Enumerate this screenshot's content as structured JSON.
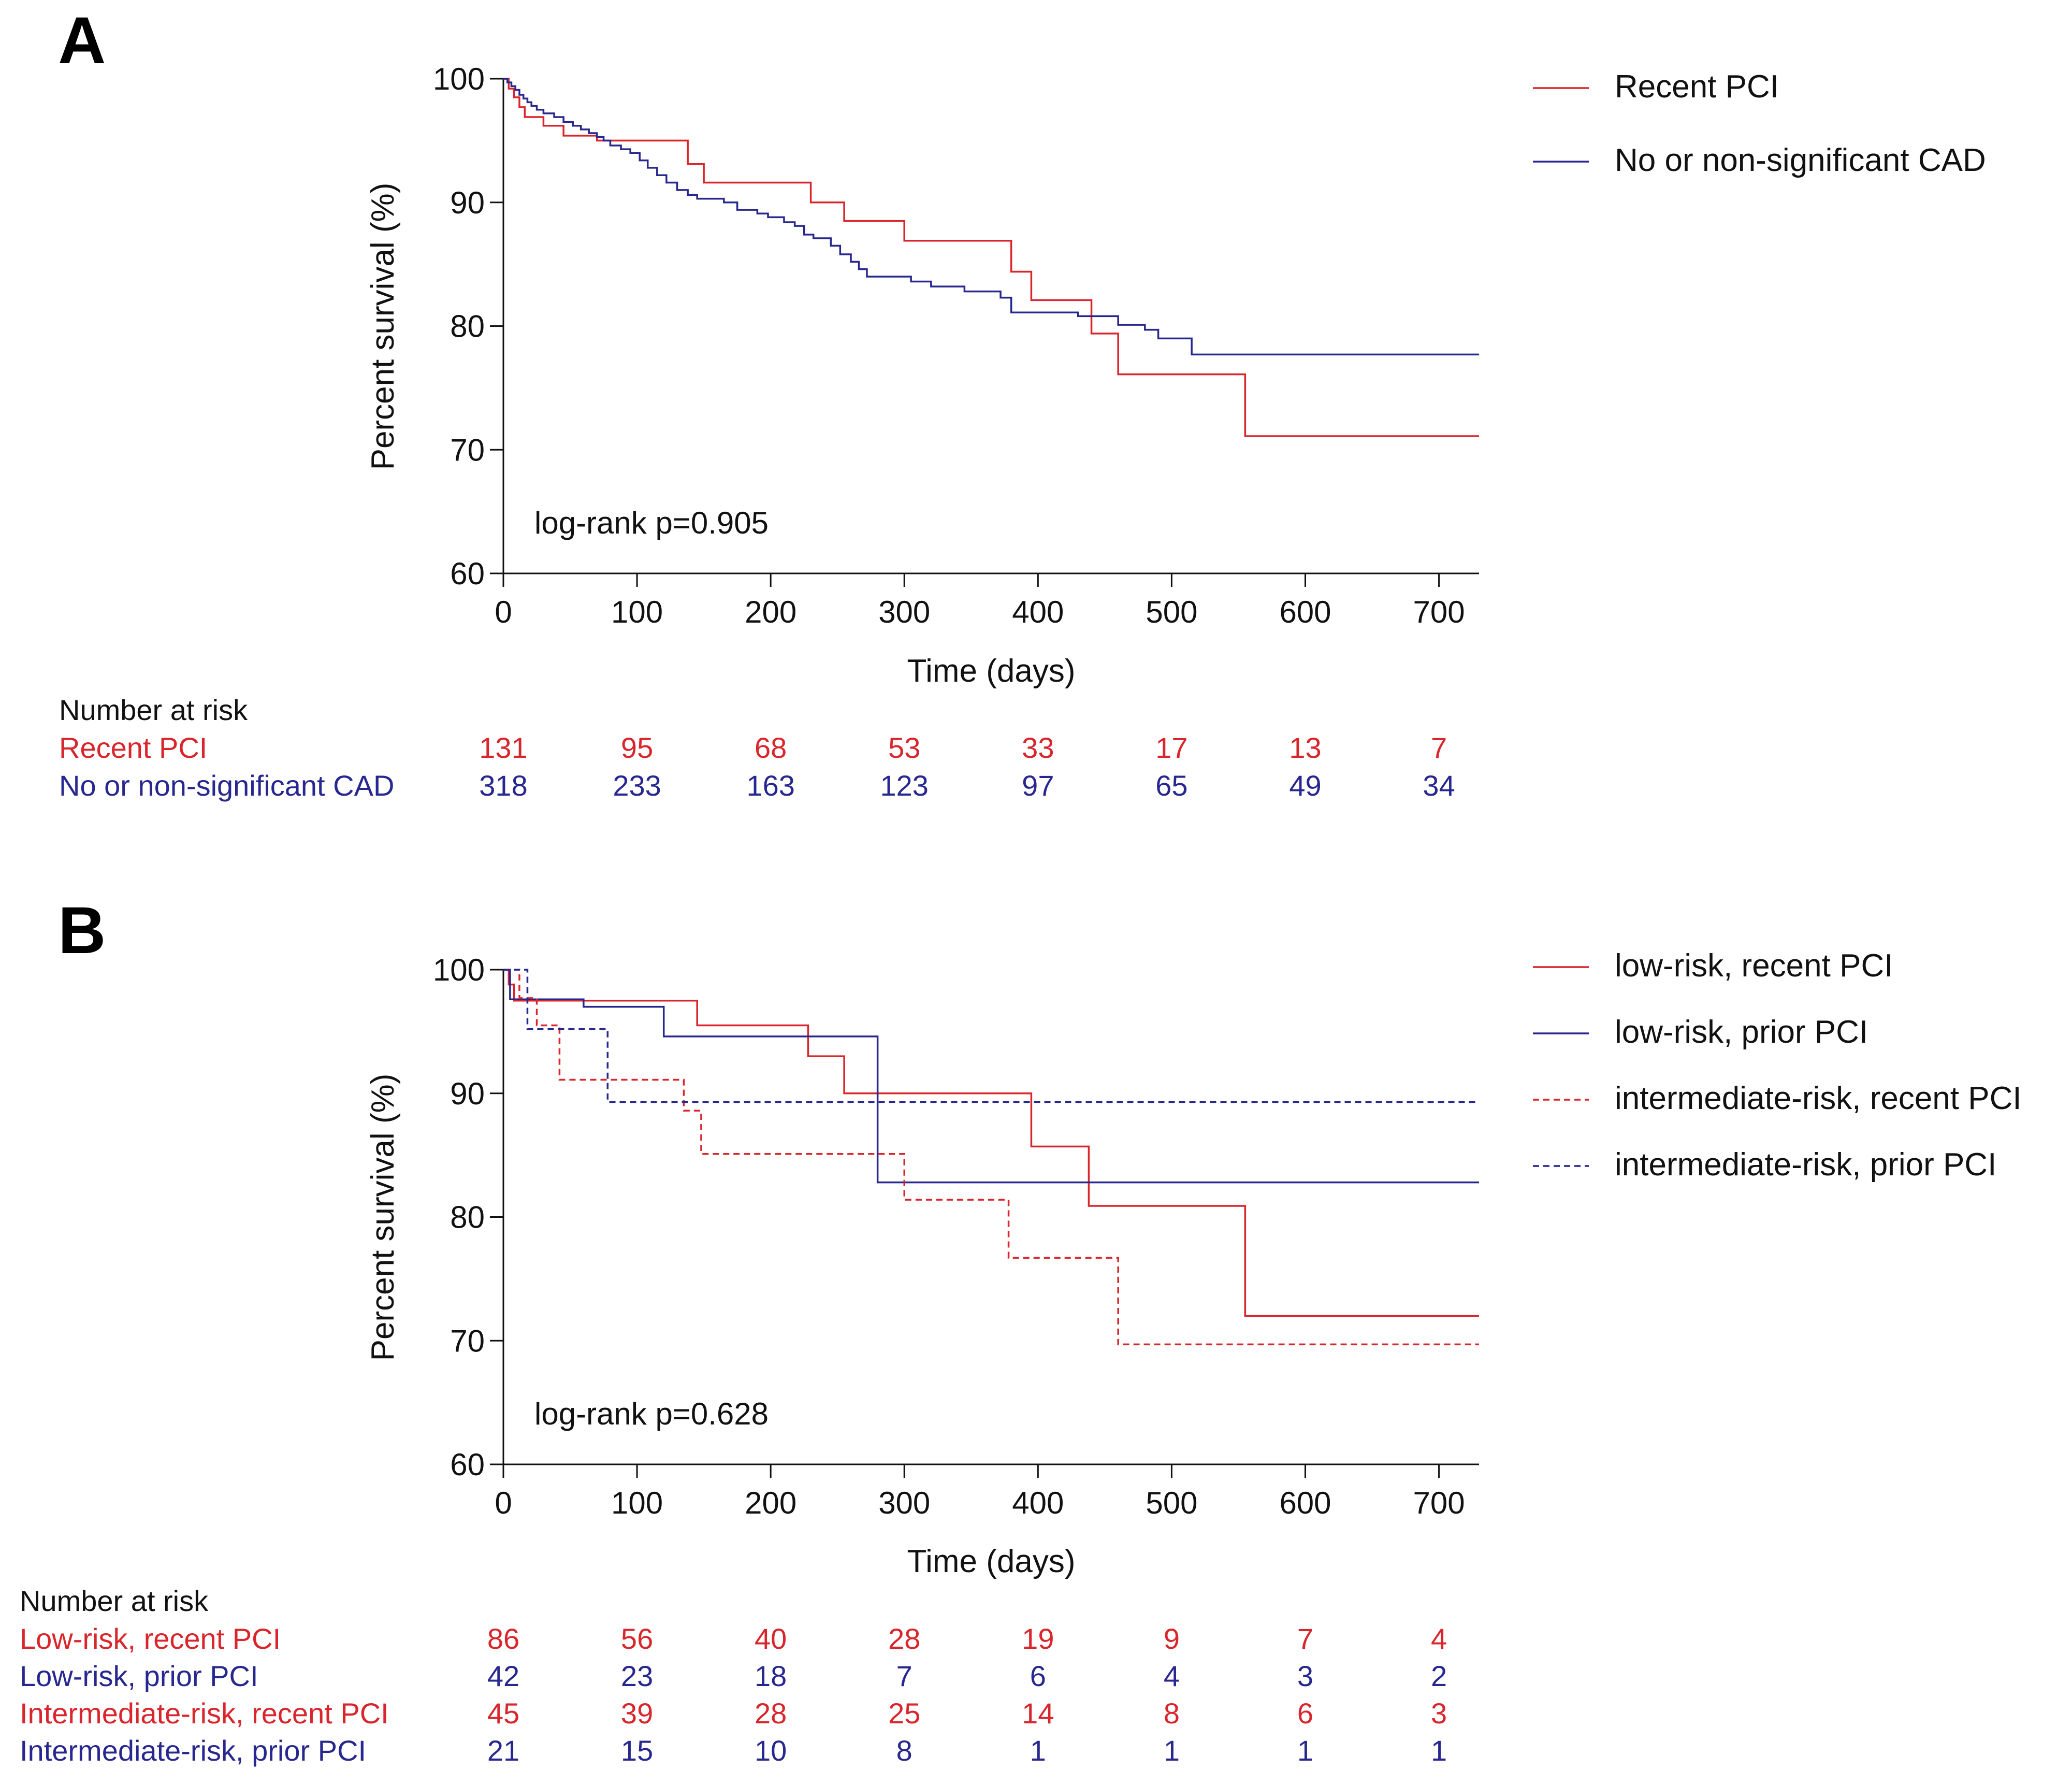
{
  "colors": {
    "red": "#d9262c",
    "blue": "#27278f",
    "black": "#111111"
  },
  "chart_data": [
    {
      "type": "line",
      "panel_label": "A",
      "title": "",
      "xlabel": "Time (days)",
      "ylabel": "Percent survival (%)",
      "xlim": [
        0,
        730
      ],
      "ylim": [
        60,
        100
      ],
      "xticks": [
        0,
        100,
        200,
        300,
        400,
        500,
        600,
        700
      ],
      "yticks": [
        60,
        70,
        80,
        90,
        100
      ],
      "xtick_labels": [
        "0",
        "100",
        "200",
        "300",
        "400",
        "500",
        "600",
        "700"
      ],
      "ytick_labels": [
        "60",
        "70",
        "80",
        "90",
        "100"
      ],
      "grid": false,
      "legend_position": "right",
      "annotation": "log-rank p=0.905",
      "series": [
        {
          "name": "Recent PCI",
          "color": "#d9262c",
          "dash": false,
          "steps": [
            [
              0,
              100
            ],
            [
              4,
              99.2
            ],
            [
              8,
              98.5
            ],
            [
              12,
              97.7
            ],
            [
              16,
              96.9
            ],
            [
              30,
              96.2
            ],
            [
              45,
              95.4
            ],
            [
              70,
              95.0
            ],
            [
              138,
              93.1
            ],
            [
              150,
              91.6
            ],
            [
              230,
              90.0
            ],
            [
              255,
              88.5
            ],
            [
              300,
              86.9
            ],
            [
              380,
              84.4
            ],
            [
              395,
              82.1
            ],
            [
              440,
              79.4
            ],
            [
              460,
              76.1
            ],
            [
              555,
              71.1
            ],
            [
              730,
              71.1
            ]
          ]
        },
        {
          "name": "No or non-significant CAD",
          "color": "#27278f",
          "dash": false,
          "steps": [
            [
              0,
              100
            ],
            [
              3,
              99.7
            ],
            [
              6,
              99.4
            ],
            [
              9,
              99.1
            ],
            [
              12,
              98.7
            ],
            [
              15,
              98.4
            ],
            [
              18,
              98.1
            ],
            [
              21,
              97.8
            ],
            [
              25,
              97.5
            ],
            [
              30,
              97.2
            ],
            [
              38,
              96.9
            ],
            [
              45,
              96.5
            ],
            [
              52,
              96.2
            ],
            [
              58,
              95.9
            ],
            [
              64,
              95.6
            ],
            [
              70,
              95.3
            ],
            [
              75,
              95.0
            ],
            [
              80,
              94.6
            ],
            [
              88,
              94.3
            ],
            [
              95,
              94.0
            ],
            [
              102,
              93.4
            ],
            [
              108,
              92.8
            ],
            [
              115,
              92.2
            ],
            [
              122,
              91.6
            ],
            [
              130,
              91.0
            ],
            [
              138,
              90.6
            ],
            [
              145,
              90.3
            ],
            [
              165,
              90.0
            ],
            [
              175,
              89.4
            ],
            [
              190,
              89.1
            ],
            [
              198,
              88.8
            ],
            [
              210,
              88.4
            ],
            [
              218,
              88.1
            ],
            [
              225,
              87.4
            ],
            [
              232,
              87.1
            ],
            [
              245,
              86.5
            ],
            [
              252,
              85.8
            ],
            [
              260,
              85.2
            ],
            [
              266,
              84.6
            ],
            [
              272,
              84.0
            ],
            [
              305,
              83.6
            ],
            [
              320,
              83.2
            ],
            [
              345,
              82.8
            ],
            [
              372,
              82.3
            ],
            [
              380,
              81.1
            ],
            [
              430,
              80.8
            ],
            [
              460,
              80.1
            ],
            [
              480,
              79.7
            ],
            [
              490,
              79.0
            ],
            [
              515,
              77.7
            ],
            [
              730,
              77.7
            ]
          ]
        }
      ],
      "risk_table": {
        "header": "Number at risk",
        "rows": [
          {
            "label": "Recent PCI",
            "color": "#d9262c",
            "values": [
              "131",
              "95",
              "68",
              "53",
              "33",
              "17",
              "13",
              "7"
            ]
          },
          {
            "label": "No or non-significant CAD",
            "color": "#27278f",
            "values": [
              "318",
              "233",
              "163",
              "123",
              "97",
              "65",
              "49",
              "34"
            ]
          }
        ]
      }
    },
    {
      "type": "line",
      "panel_label": "B",
      "title": "",
      "xlabel": "Time (days)",
      "ylabel": "Percent survival (%)",
      "xlim": [
        0,
        730
      ],
      "ylim": [
        60,
        100
      ],
      "xticks": [
        0,
        100,
        200,
        300,
        400,
        500,
        600,
        700
      ],
      "yticks": [
        60,
        70,
        80,
        90,
        100
      ],
      "xtick_labels": [
        "0",
        "100",
        "200",
        "300",
        "400",
        "500",
        "600",
        "700"
      ],
      "ytick_labels": [
        "60",
        "70",
        "80",
        "90",
        "100"
      ],
      "grid": false,
      "legend_position": "right",
      "annotation": "log-rank p=0.628",
      "series": [
        {
          "name": "low-risk, recent PCI",
          "color": "#d9262c",
          "dash": false,
          "steps": [
            [
              0,
              100
            ],
            [
              4,
              98.8
            ],
            [
              8,
              97.5
            ],
            [
              145,
              95.5
            ],
            [
              228,
              93.0
            ],
            [
              255,
              90.0
            ],
            [
              395,
              85.7
            ],
            [
              438,
              80.9
            ],
            [
              555,
              72.0
            ],
            [
              730,
              72.0
            ]
          ]
        },
        {
          "name": "low-risk, prior PCI",
          "color": "#27278f",
          "dash": false,
          "steps": [
            [
              0,
              100
            ],
            [
              5,
              97.6
            ],
            [
              60,
              97.0
            ],
            [
              120,
              94.6
            ],
            [
              280,
              82.8
            ],
            [
              730,
              82.8
            ]
          ]
        },
        {
          "name": "intermediate-risk, recent PCI",
          "color": "#d9262c",
          "dash": true,
          "steps": [
            [
              0,
              100
            ],
            [
              12,
              97.7
            ],
            [
              25,
              95.5
            ],
            [
              42,
              91.1
            ],
            [
              135,
              88.6
            ],
            [
              148,
              85.1
            ],
            [
              300,
              81.4
            ],
            [
              378,
              76.7
            ],
            [
              460,
              69.7
            ],
            [
              730,
              69.7
            ]
          ]
        },
        {
          "name": "intermediate-risk, prior PCI",
          "color": "#27278f",
          "dash": true,
          "steps": [
            [
              0,
              100
            ],
            [
              18,
              95.2
            ],
            [
              78,
              89.3
            ],
            [
              730,
              89.3
            ]
          ]
        }
      ],
      "risk_table": {
        "header": "Number at risk",
        "rows": [
          {
            "label": "Low-risk, recent PCI",
            "color": "#d9262c",
            "values": [
              "86",
              "56",
              "40",
              "28",
              "19",
              "9",
              "7",
              "4"
            ]
          },
          {
            "label": "Low-risk, prior PCI",
            "color": "#27278f",
            "values": [
              "42",
              "23",
              "18",
              "7",
              "6",
              "4",
              "3",
              "2"
            ]
          },
          {
            "label": "Intermediate-risk, recent PCI",
            "color": "#d9262c",
            "values": [
              "45",
              "39",
              "28",
              "25",
              "14",
              "8",
              "6",
              "3"
            ]
          },
          {
            "label": "Intermediate-risk, prior PCI",
            "color": "#27278f",
            "values": [
              "21",
              "15",
              "10",
              "8",
              "1",
              "1",
              "1",
              "1"
            ]
          }
        ]
      }
    }
  ]
}
